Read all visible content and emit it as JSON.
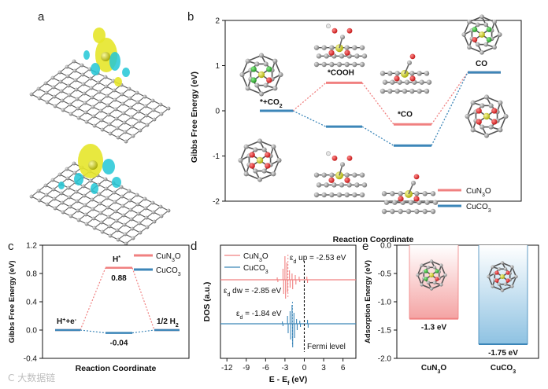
{
  "panels": {
    "a": "a",
    "b": "b",
    "c": "c",
    "d": "d",
    "e": "e"
  },
  "colors": {
    "cun3o": "#f08080",
    "cuco3": "#3c86b8",
    "carbon": "#808080",
    "copper": "#cdd230",
    "nitrogen": "#2eb82e",
    "oxygen": "#e02020",
    "density_yellow": "#e6e62a",
    "density_cyan": "#22c7d6"
  },
  "watermark": "C 大数据链",
  "chart_data": [
    {
      "panel": "b",
      "type": "line",
      "xlabel": "Reaction Coordinate",
      "ylabel": "Gibbs Free Energy (eV)",
      "ylim": [
        -2,
        2
      ],
      "yticks": [
        "2",
        "1",
        "0",
        "-1",
        "-2"
      ],
      "states": [
        "*+CO2",
        "*COOH",
        "*CO",
        "CO"
      ],
      "state_labels": {
        "s1": "*+CO",
        "s1_sub": "2",
        "s2": "*COOH",
        "s3": "*CO",
        "s4": "CO"
      },
      "series": [
        {
          "name": "CuN3O",
          "name_main": "CuN",
          "name_sub": "3",
          "name_tail": "O",
          "values": [
            0.0,
            0.62,
            -0.3,
            0.85
          ]
        },
        {
          "name": "CuCO3",
          "name_main": "CuCO",
          "name_sub": "3",
          "name_tail": "",
          "values": [
            0.0,
            -0.35,
            -0.77,
            0.85
          ]
        }
      ],
      "legend_position": "bottom-right"
    },
    {
      "panel": "c",
      "type": "line",
      "xlabel": "Reaction Coordinate",
      "ylabel": "Gibbs Free Energy (eV)",
      "ylim": [
        -0.4,
        1.2
      ],
      "yticks": [
        "1.2",
        "0.8",
        "0.4",
        "0.0",
        "-0.4"
      ],
      "states": [
        "H++e-",
        "H*",
        "1/2 H2"
      ],
      "state_labels": {
        "s1": "H",
        "s1_sup": "+",
        "s1_mid": "+e",
        "s1_sup2": "-",
        "s2": "H",
        "s2_sup": "*",
        "s3": "1/2 H",
        "s3_sub": "2"
      },
      "series": [
        {
          "name": "CuN3O",
          "name_main": "CuN",
          "name_sub": "3",
          "name_tail": "O",
          "values": [
            0.0,
            0.88,
            0.0
          ]
        },
        {
          "name": "CuCO3",
          "name_main": "CuCO",
          "name_sub": "3",
          "name_tail": "",
          "values": [
            0.0,
            -0.04,
            0.0
          ]
        }
      ],
      "value_labels": [
        "0.88",
        "-0.04"
      ],
      "legend_position": "top-right"
    },
    {
      "panel": "d",
      "type": "line",
      "xlabel_main": "E - E",
      "xlabel_sub": "f",
      "xlabel_tail": " (eV)",
      "xlabel": "E - Ef (eV)",
      "ylabel": "DOS (a.u.)",
      "xlim": [
        -13,
        8
      ],
      "xticks": [
        "-12",
        "-9",
        "-6",
        "-3",
        "0",
        "3",
        "6"
      ],
      "fermi_label": "Fermi level",
      "series": [
        {
          "name": "CuN3O",
          "name_main": "CuN",
          "name_sub": "3",
          "name_tail": "O"
        },
        {
          "name": "CuCO3",
          "name_main": "CuCO",
          "name_sub": "3",
          "name_tail": ""
        }
      ],
      "annotations": {
        "up_sub": "d",
        "up_tail": " up = -2.53 eV",
        "dw_sub": "d",
        "dw_tail": " dw = -2.85 eV",
        "co3_sub": "d",
        "co3_tail": " = -1.84 eV",
        "eps": "ε"
      },
      "d_band_centers": {
        "CuN3O_up": -2.53,
        "CuN3O_dw": -2.85,
        "CuCO3": -1.84
      }
    },
    {
      "panel": "e",
      "type": "bar",
      "ylabel": "Adsorption Energy (eV)",
      "ylim": [
        -2.0,
        0.0
      ],
      "yticks": [
        "0.0",
        "-0.5",
        "-1.0",
        "-1.5",
        "-2.0"
      ],
      "categories": [
        "CuN3O",
        "CuCO3"
      ],
      "cat_labels": [
        {
          "main": "CuN",
          "sub": "3",
          "tail": "O"
        },
        {
          "main": "CuCO",
          "sub": "3",
          "tail": ""
        }
      ],
      "values": [
        -1.3,
        -1.75
      ],
      "value_labels": [
        "-1.3 eV",
        "-1.75 eV"
      ]
    }
  ]
}
